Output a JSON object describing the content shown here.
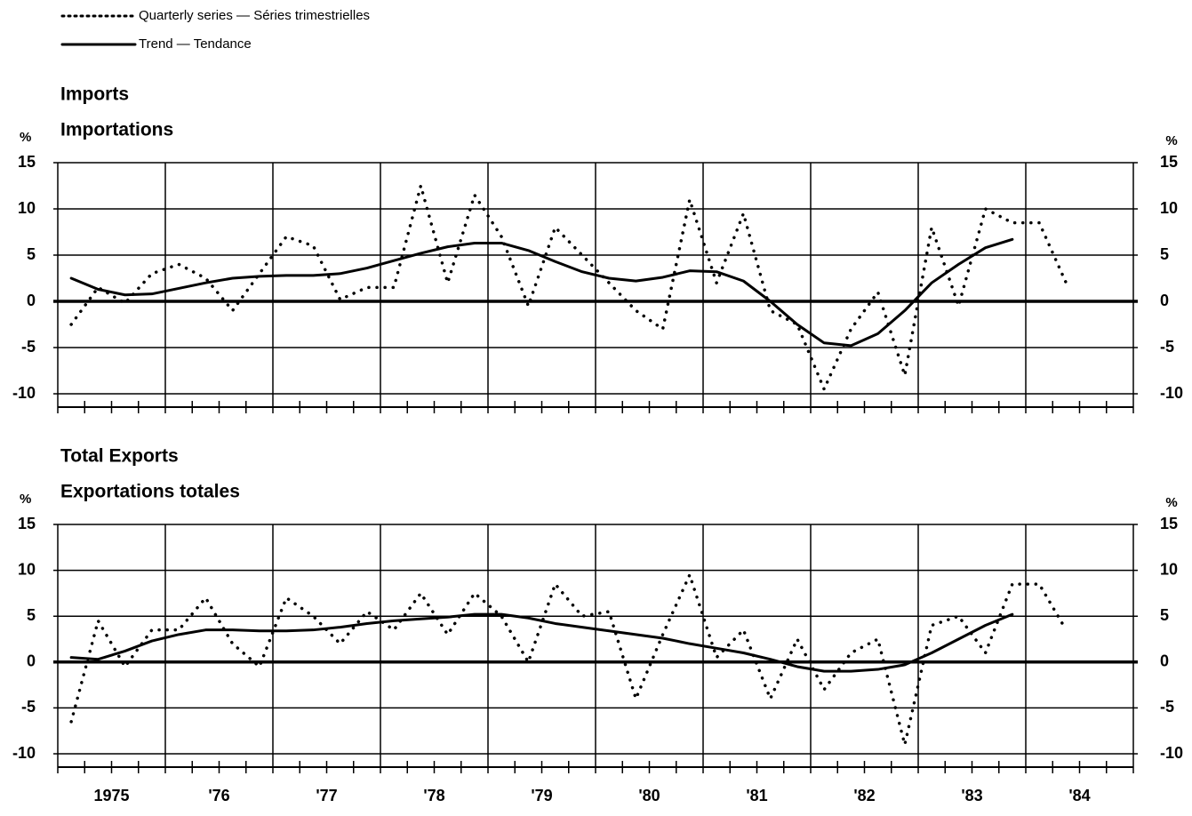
{
  "chart_data": [
    {
      "type": "line",
      "title": "Imports",
      "subtitle": "Importations",
      "ylabel": "%",
      "ylim": [
        -10,
        15
      ],
      "yticks": [
        -10,
        -5,
        0,
        5,
        10,
        15
      ],
      "grid": true,
      "series": [
        {
          "name": "Quarterly series — Séries trimestrielles",
          "color": "#000000",
          "style": "dotted",
          "values": [
            -2.5,
            1.5,
            -0.2,
            3,
            4,
            2.5,
            -1,
            3,
            7,
            6,
            0.2,
            1.5,
            1.5,
            12.5,
            2,
            11.5,
            7,
            -0.5,
            8,
            5,
            2,
            -1,
            -3,
            11,
            2,
            9.5,
            -1,
            -2.5,
            -9.5,
            -3,
            1,
            -8,
            8,
            -0.5,
            10,
            8.5,
            8.5,
            2
          ]
        },
        {
          "name": "Trend — Tendance",
          "color": "#000000",
          "style": "solid",
          "values": [
            2.5,
            1.3,
            0.7,
            0.8,
            1.4,
            2,
            2.5,
            2.7,
            2.8,
            2.8,
            3,
            3.6,
            4.4,
            5.2,
            5.9,
            6.3,
            6.3,
            5.5,
            4.3,
            3.2,
            2.5,
            2.2,
            2.6,
            3.3,
            3.2,
            2.2,
            0,
            -2.5,
            -4.5,
            -4.8,
            -3.5,
            -1,
            2,
            4,
            5.8,
            6.7,
            null,
            null
          ]
        }
      ]
    },
    {
      "type": "line",
      "title": "Total Exports",
      "subtitle": "Exportations totales",
      "ylabel": "%",
      "ylim": [
        -10,
        15
      ],
      "yticks": [
        -10,
        -5,
        0,
        5,
        10,
        15
      ],
      "grid": true,
      "x_labels": [
        "1975",
        "'76",
        "'77",
        "'78",
        "'79",
        "'80",
        "'81",
        "'82",
        "'83",
        "'84"
      ],
      "series": [
        {
          "name": "Quarterly series — Séries trimestrielles",
          "color": "#000000",
          "style": "dotted",
          "values": [
            -6.5,
            4.5,
            -0.5,
            3.5,
            3.5,
            7,
            2,
            -0.5,
            7,
            5,
            2,
            5.5,
            3.5,
            7.5,
            3,
            7.5,
            5,
            0,
            8.5,
            5,
            5.5,
            -4,
            3,
            9.5,
            0.5,
            3.5,
            -4,
            2.5,
            -3,
            1,
            2.5,
            -9,
            4,
            5,
            1,
            8.5,
            8.5,
            3.5
          ]
        },
        {
          "name": "Trend — Tendance",
          "color": "#000000",
          "style": "solid",
          "values": [
            0.5,
            0.3,
            1.2,
            2.3,
            3,
            3.5,
            3.5,
            3.4,
            3.4,
            3.5,
            3.8,
            4.2,
            4.5,
            4.7,
            4.9,
            5.2,
            5.2,
            4.8,
            4.2,
            3.8,
            3.4,
            3,
            2.6,
            2,
            1.5,
            1,
            0.3,
            -0.5,
            -1,
            -1,
            -0.8,
            -0.3,
            1,
            2.5,
            4,
            5.2,
            null,
            null
          ]
        }
      ]
    }
  ]
}
